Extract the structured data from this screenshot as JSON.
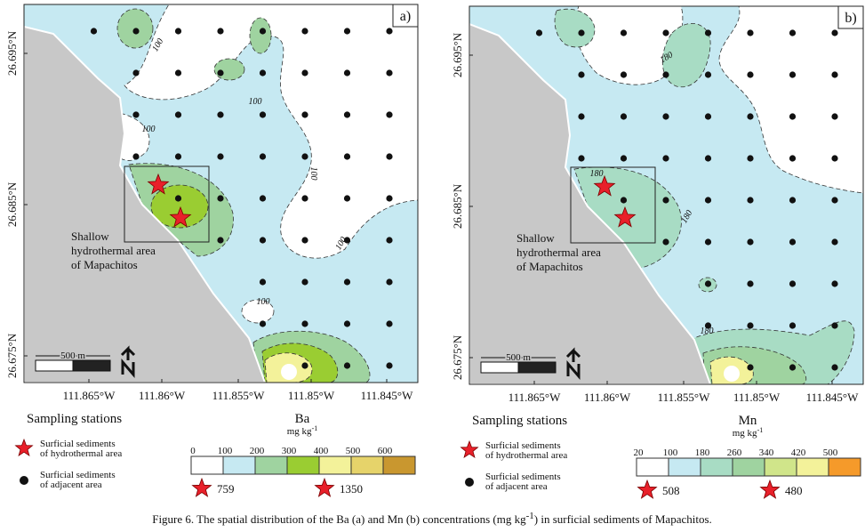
{
  "panels": [
    {
      "label": "a)",
      "element": "Ba",
      "unit": "mg kg",
      "unit_exponent": "-1",
      "y_ticks": [
        "26.695°N",
        "26.685°N",
        "26.675°N"
      ],
      "x_ticks": [
        "111.865°W",
        "111.86°W",
        "111.855°W",
        "111.85°W",
        "111.845°W"
      ],
      "contour_labels": [
        "100",
        "100",
        "100",
        "100",
        "100",
        "100"
      ],
      "scale_bar": "500 m",
      "area_label": [
        "Shallow",
        "hydrothermal area",
        "of Mapachitos"
      ],
      "legend_title": "Sampling stations",
      "hydrothermal_label": [
        "Surficial sediments",
        "of hydrothermal area"
      ],
      "adjacent_label": [
        "Surficial sediments",
        "of adjacent area"
      ],
      "legend_bins": [
        "0",
        "100",
        "200",
        "300",
        "400",
        "500",
        "600"
      ],
      "star_values": [
        "759",
        "1350"
      ]
    },
    {
      "label": "b)",
      "element": "Mn",
      "unit": "mg kg",
      "unit_exponent": "-1",
      "y_ticks": [
        "26.695°N",
        "26.685°N",
        "26.675°N"
      ],
      "x_ticks": [
        "111.865°W",
        "111.86°W",
        "111.855°W",
        "111.85°W",
        "111.845°W"
      ],
      "contour_labels": [
        "180",
        "180",
        "180",
        "180"
      ],
      "scale_bar": "500 m",
      "area_label": [
        "Shallow",
        "hydrothermal area",
        "of Mapachitos"
      ],
      "legend_title": "Sampling stations",
      "hydrothermal_label": [
        "Surficial sediments",
        "of hydrothermal area"
      ],
      "adjacent_label": [
        "Surficial sediments",
        "of adjacent area"
      ],
      "legend_bins": [
        "20",
        "100",
        "180",
        "260",
        "340",
        "420",
        "500"
      ],
      "star_values": [
        "508",
        "480"
      ]
    }
  ],
  "caption": [
    "Figure 6. The spatial distribution of the Ba (a) and Mn (b) concentrations (mg kg",
    "-1",
    ") in surficial sediments of Mapachitos."
  ]
}
